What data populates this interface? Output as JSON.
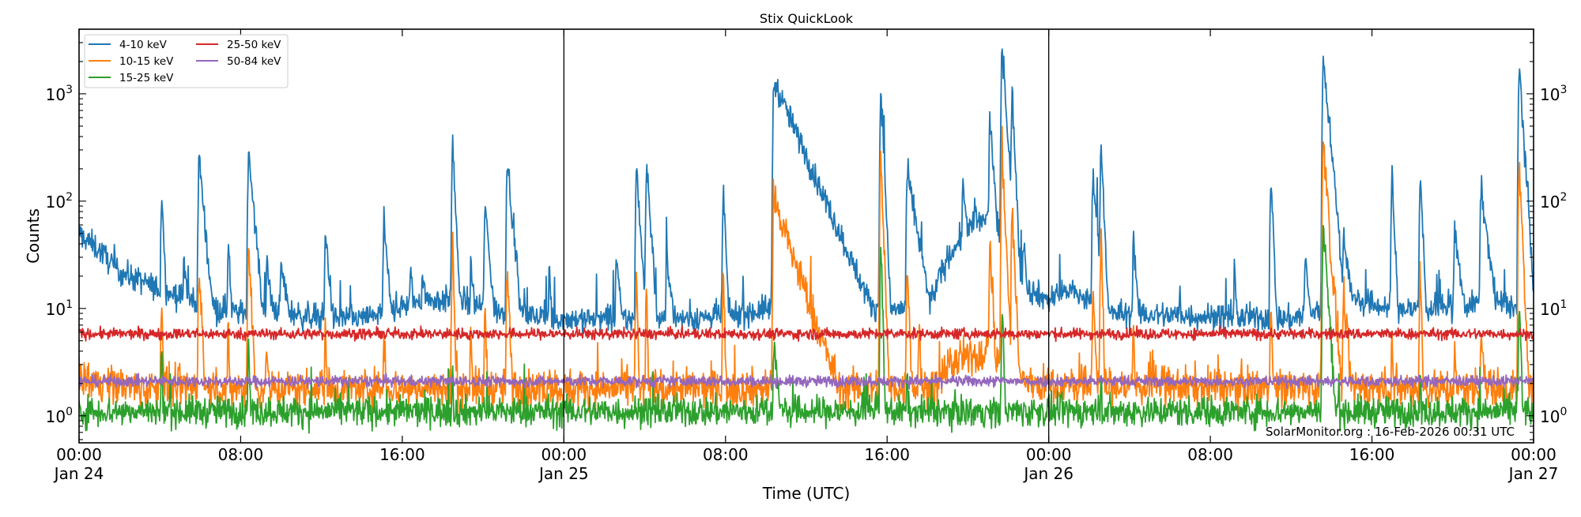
{
  "chart_data": {
    "type": "line",
    "title": "Stix QuickLook",
    "xlabel": "Time (UTC)",
    "ylabel": "Counts",
    "yscale": "log",
    "ylim": [
      0.56,
      4000
    ],
    "xlim": [
      "Jan 24 00:00",
      "Jan 27 00:00"
    ],
    "grid": false,
    "legend_position": "top-left",
    "annotation": "SolarMonitor.org : 16-Feb-2026 00:31 UTC",
    "x_ticks": [
      {
        "t": "Jan 24 00:00",
        "label": "00:00",
        "date": "Jan 24"
      },
      {
        "t": "Jan 24 08:00",
        "label": "08:00",
        "date": ""
      },
      {
        "t": "Jan 24 16:00",
        "label": "16:00",
        "date": ""
      },
      {
        "t": "Jan 25 00:00",
        "label": "00:00",
        "date": "Jan 25"
      },
      {
        "t": "Jan 25 08:00",
        "label": "08:00",
        "date": ""
      },
      {
        "t": "Jan 25 16:00",
        "label": "16:00",
        "date": ""
      },
      {
        "t": "Jan 26 00:00",
        "label": "00:00",
        "date": "Jan 26"
      },
      {
        "t": "Jan 26 08:00",
        "label": "08:00",
        "date": ""
      },
      {
        "t": "Jan 26 16:00",
        "label": "16:00",
        "date": ""
      },
      {
        "t": "Jan 27 00:00",
        "label": "00:00",
        "date": "Jan 27"
      }
    ],
    "y_ticks": [
      {
        "v": 1,
        "base": "10",
        "exp": "0"
      },
      {
        "v": 10,
        "base": "10",
        "exp": "1"
      },
      {
        "v": 100,
        "base": "10",
        "exp": "2"
      },
      {
        "v": 1000,
        "base": "10",
        "exp": "3"
      }
    ],
    "day_lines": [
      "Jan 25 00:00",
      "Jan 26 00:00"
    ],
    "series": [
      {
        "name": "4-10 keV",
        "color": "#1f77b4",
        "noise": 0.06,
        "baseline": [
          [
            "Jan 24 00:00",
            50
          ],
          [
            "Jan 24 01:00",
            35
          ],
          [
            "Jan 24 02:00",
            22
          ],
          [
            "Jan 24 04:00",
            15
          ],
          [
            "Jan 24 06:00",
            11
          ],
          [
            "Jan 24 08:00",
            9
          ],
          [
            "Jan 24 10:00",
            10
          ],
          [
            "Jan 24 11:00",
            8.5
          ],
          [
            "Jan 24 14:00",
            8
          ],
          [
            "Jan 24 17:00",
            12
          ],
          [
            "Jan 24 19:00",
            12
          ],
          [
            "Jan 24 21:00",
            9
          ],
          [
            "Jan 25 00:00",
            8
          ],
          [
            "Jan 25 06:00",
            8
          ],
          [
            "Jan 25 09:00",
            9
          ],
          [
            "Jan 25 10:00",
            10
          ],
          [
            "Jan 25 14:00",
            12
          ],
          [
            "Jan 25 16:00",
            10
          ],
          [
            "Jan 25 18:00",
            10
          ],
          [
            "Jan 25 19:00",
            30
          ],
          [
            "Jan 25 20:00",
            55
          ],
          [
            "Jan 25 21:00",
            70
          ],
          [
            "Jan 25 22:00",
            40
          ],
          [
            "Jan 25 23:00",
            15
          ],
          [
            "Jan 26 00:00",
            12
          ],
          [
            "Jan 26 01:00",
            15
          ],
          [
            "Jan 26 03:00",
            9
          ],
          [
            "Jan 26 12:00",
            8
          ],
          [
            "Jan 26 15:00",
            12
          ],
          [
            "Jan 26 17:00",
            10
          ],
          [
            "Jan 26 20:00",
            10
          ],
          [
            "Jan 26 22:00",
            12
          ],
          [
            "Jan 27 00:00",
            9
          ]
        ],
        "peaks": [
          [
            "Jan 24 04:06",
            120,
            0.1
          ],
          [
            "Jan 24 05:12",
            30,
            0.2
          ],
          [
            "Jan 24 05:57",
            250,
            0.2
          ],
          [
            "Jan 24 06:12",
            50,
            0.3
          ],
          [
            "Jan 24 07:24",
            45,
            0.1
          ],
          [
            "Jan 24 08:24",
            300,
            0.2
          ],
          [
            "Jan 24 09:18",
            25,
            0.3
          ],
          [
            "Jan 24 10:00",
            25,
            0.4
          ],
          [
            "Jan 24 12:12",
            50,
            0.2
          ],
          [
            "Jan 24 15:06",
            55,
            0.2
          ],
          [
            "Jan 24 16:24",
            20,
            0.3
          ],
          [
            "Jan 24 17:00",
            22,
            0.3
          ],
          [
            "Jan 24 18:30",
            350,
            0.1
          ],
          [
            "Jan 24 19:24",
            25,
            0.2
          ],
          [
            "Jan 24 20:06",
            90,
            0.2
          ],
          [
            "Jan 24 21:12",
            250,
            0.2
          ],
          [
            "Jan 24 23:18",
            22,
            0.1
          ],
          [
            "Jan 25 02:36",
            30,
            0.2
          ],
          [
            "Jan 25 03:36",
            200,
            0.15
          ],
          [
            "Jan 25 04:06",
            230,
            0.15
          ],
          [
            "Jan 25 05:06",
            30,
            0.3
          ],
          [
            "Jan 25 07:54",
            120,
            0.1
          ],
          [
            "Jan 25 10:24",
            1300,
            1.0
          ],
          [
            "Jan 25 11:30",
            80,
            1.5
          ],
          [
            "Jan 25 13:00",
            17,
            0.3
          ],
          [
            "Jan 25 15:42",
            1100,
            0.1
          ],
          [
            "Jan 25 17:00",
            180,
            0.4
          ],
          [
            "Jan 25 19:45",
            130,
            0.3
          ],
          [
            "Jan 25 20:20",
            90,
            0.3
          ],
          [
            "Jan 25 21:06",
            600,
            0.15
          ],
          [
            "Jan 25 21:42",
            2700,
            0.15
          ],
          [
            "Jan 25 22:12",
            1000,
            0.1
          ],
          [
            "Jan 25 22:45",
            45,
            0.2
          ],
          [
            "Jan 26 02:12",
            170,
            0.2
          ],
          [
            "Jan 26 02:36",
            330,
            0.1
          ],
          [
            "Jan 26 04:12",
            45,
            0.15
          ],
          [
            "Jan 26 06:30",
            15,
            0.1
          ],
          [
            "Jan 26 09:12",
            25,
            0.1
          ],
          [
            "Jan 26 11:00",
            160,
            0.1
          ],
          [
            "Jan 26 12:42",
            30,
            0.2
          ],
          [
            "Jan 26 13:36",
            2200,
            0.2
          ],
          [
            "Jan 26 14:06",
            50,
            0.3
          ],
          [
            "Jan 26 14:36",
            50,
            0.3
          ],
          [
            "Jan 26 17:00",
            170,
            0.1
          ],
          [
            "Jan 26 18:24",
            170,
            0.1
          ],
          [
            "Jan 26 20:06",
            50,
            0.3
          ],
          [
            "Jan 26 21:24",
            130,
            0.3
          ],
          [
            "Jan 26 23:18",
            1700,
            0.15
          ]
        ]
      },
      {
        "name": "10-15 keV",
        "color": "#ff7f0e",
        "noise": 0.09,
        "baseline": [
          [
            "Jan 24 00:00",
            2.3
          ],
          [
            "Jan 24 03:00",
            1.8
          ],
          [
            "Jan 25 18:30",
            1.8
          ],
          [
            "Jan 25 19:00",
            3
          ],
          [
            "Jan 25 21:00",
            4
          ],
          [
            "Jan 25 22:30",
            2.2
          ],
          [
            "Jan 26 00:00",
            1.9
          ],
          [
            "Jan 27 00:00",
            1.8
          ]
        ],
        "peaks": [
          [
            "Jan 24 04:06",
            15,
            0.05
          ],
          [
            "Jan 24 05:57",
            28,
            0.1
          ],
          [
            "Jan 24 07:24",
            6,
            0.05
          ],
          [
            "Jan 24 08:24",
            45,
            0.1
          ],
          [
            "Jan 24 09:18",
            5,
            0.1
          ],
          [
            "Jan 24 12:12",
            6,
            0.1
          ],
          [
            "Jan 24 15:06",
            6,
            0.1
          ],
          [
            "Jan 24 18:30",
            45,
            0.05
          ],
          [
            "Jan 24 19:24",
            8,
            0.05
          ],
          [
            "Jan 24 20:06",
            8,
            0.1
          ],
          [
            "Jan 24 21:12",
            22,
            0.1
          ],
          [
            "Jan 24 23:18",
            4,
            0.05
          ],
          [
            "Jan 25 03:36",
            20,
            0.05
          ],
          [
            "Jan 25 04:06",
            15,
            0.05
          ],
          [
            "Jan 25 07:54",
            22,
            0.05
          ],
          [
            "Jan 25 10:24",
            100,
            0.8
          ],
          [
            "Jan 25 12:00",
            3,
            0.5
          ],
          [
            "Jan 25 15:42",
            250,
            0.08
          ],
          [
            "Jan 25 17:00",
            25,
            0.1
          ],
          [
            "Jan 25 17:36",
            9,
            0.05
          ],
          [
            "Jan 25 21:06",
            45,
            0.1
          ],
          [
            "Jan 25 21:42",
            300,
            0.1
          ],
          [
            "Jan 25 22:12",
            80,
            0.1
          ],
          [
            "Jan 26 02:12",
            15,
            0.1
          ],
          [
            "Jan 26 02:36",
            50,
            0.05
          ],
          [
            "Jan 26 04:12",
            8,
            0.05
          ],
          [
            "Jan 26 11:00",
            15,
            0.05
          ],
          [
            "Jan 26 13:36",
            400,
            0.15
          ],
          [
            "Jan 26 14:06",
            15,
            0.2
          ],
          [
            "Jan 26 14:36",
            12,
            0.2
          ],
          [
            "Jan 26 17:00",
            6,
            0.05
          ],
          [
            "Jan 26 18:24",
            25,
            0.05
          ],
          [
            "Jan 26 20:06",
            4,
            0.1
          ],
          [
            "Jan 26 21:24",
            6,
            0.2
          ],
          [
            "Jan 26 23:18",
            200,
            0.1
          ]
        ]
      },
      {
        "name": "15-25 keV",
        "color": "#2ca02c",
        "noise": 0.07,
        "baseline": [
          [
            "Jan 24 00:00",
            1.1
          ],
          [
            "Jan 27 00:00",
            1.1
          ]
        ],
        "peaks": [
          [
            "Jan 24 04:06",
            4,
            0.05
          ],
          [
            "Jan 24 08:24",
            6,
            0.05
          ],
          [
            "Jan 24 18:30",
            3,
            0.05
          ],
          [
            "Jan 25 10:24",
            5,
            0.2
          ],
          [
            "Jan 25 15:42",
            35,
            0.06
          ],
          [
            "Jan 25 17:00",
            3,
            0.05
          ],
          [
            "Jan 25 21:42",
            9,
            0.08
          ],
          [
            "Jan 26 02:36",
            3,
            0.05
          ],
          [
            "Jan 26 13:36",
            60,
            0.15
          ],
          [
            "Jan 26 18:24",
            2.5,
            0.05
          ],
          [
            "Jan 26 23:18",
            10,
            0.08
          ]
        ]
      },
      {
        "name": "25-50 keV",
        "color": "#d62728",
        "noise": 0.025,
        "baseline": [
          [
            "Jan 24 00:00",
            5.8
          ],
          [
            "Jan 27 00:00",
            5.8
          ]
        ],
        "peaks": []
      },
      {
        "name": "50-84 keV",
        "color": "#9467bd",
        "noise": 0.025,
        "baseline": [
          [
            "Jan 24 00:00",
            2.1
          ],
          [
            "Jan 27 00:00",
            2.1
          ]
        ],
        "peaks": []
      }
    ]
  }
}
